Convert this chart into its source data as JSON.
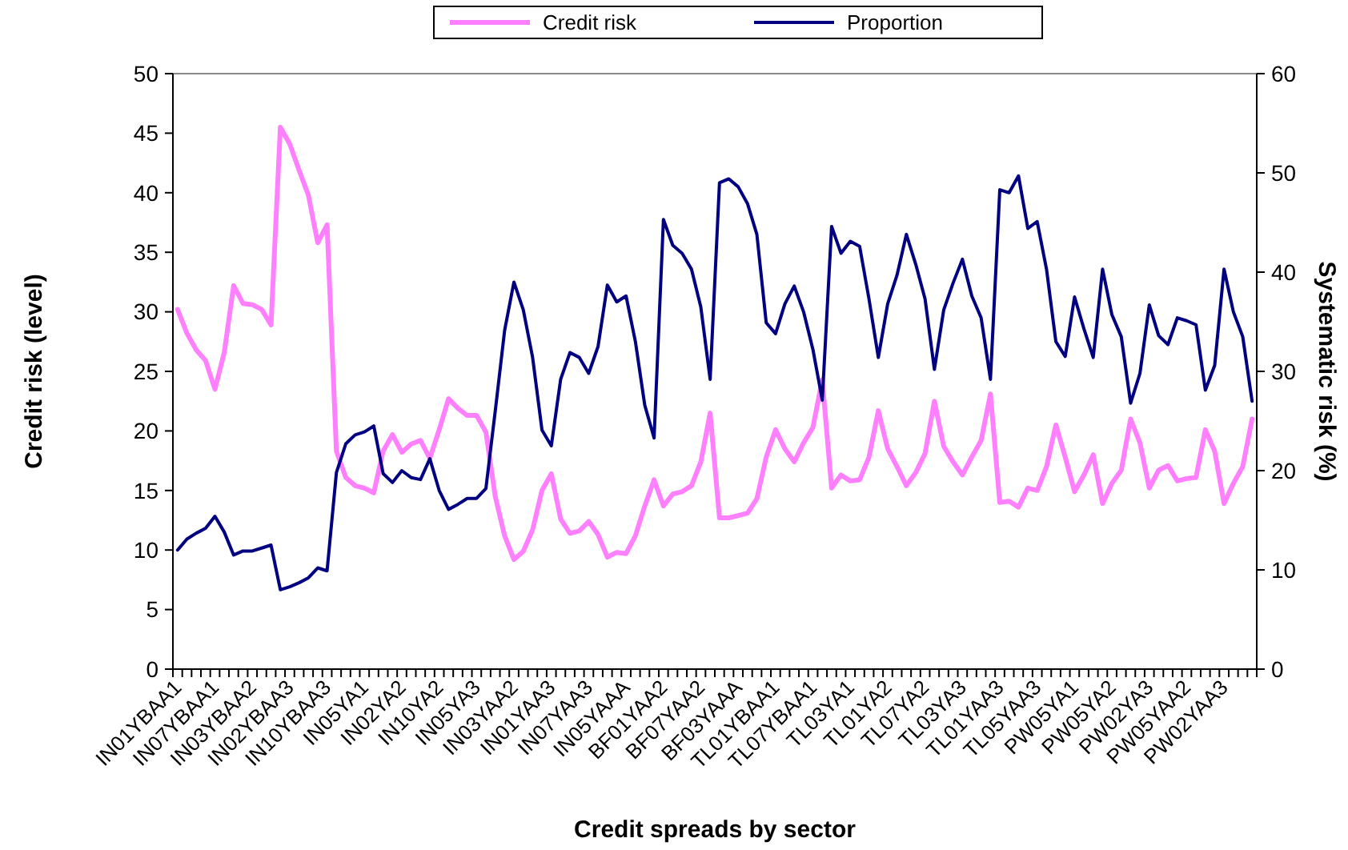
{
  "chart_data": {
    "type": "line",
    "xlabel": "Credit spreads by sector",
    "ylabel": "Credit risk (level)",
    "y2label": "Systematic risk (%)",
    "categories": [
      "IN01YBAA1",
      null,
      null,
      null,
      "IN07YBAA1",
      null,
      null,
      null,
      "IN03YBAA2",
      null,
      null,
      null,
      "IN02YBAA3",
      null,
      null,
      null,
      "IN10YBAA3",
      null,
      null,
      null,
      "IN05YA1",
      null,
      null,
      null,
      "IN02YA2",
      null,
      null,
      null,
      "IN10YA2",
      null,
      null,
      null,
      "IN05YA3",
      null,
      null,
      null,
      "IN03YAA2",
      null,
      null,
      null,
      "IN01YAA3",
      null,
      null,
      null,
      "IN07YAA3",
      null,
      null,
      null,
      "IN05YAAA",
      null,
      null,
      null,
      "BF01YAA2",
      null,
      null,
      null,
      "BF07YAA2",
      null,
      null,
      null,
      "BF03YAAA",
      null,
      null,
      null,
      "TL01YBAA1",
      null,
      null,
      null,
      "TL07YBAA1",
      null,
      null,
      null,
      "TL03YA1",
      null,
      null,
      null,
      "TL01YA2",
      null,
      null,
      null,
      "TL07YA2",
      null,
      null,
      null,
      "TL03YA3",
      null,
      null,
      null,
      "TL01YAA3",
      null,
      null,
      null,
      "TL05YAA3",
      null,
      null,
      null,
      "PW05YA1",
      null,
      null,
      null,
      "PW05YA2",
      null,
      null,
      null,
      "PW02YA3",
      null,
      null,
      null,
      "PW05YAA2",
      null,
      null,
      null,
      "PW02YAA3",
      null,
      null,
      null
    ],
    "series": [
      {
        "name": "Credit risk",
        "color": "#ff80ff",
        "values": [
          30.2,
          28.2,
          26.8,
          25.9,
          23.5,
          26.6,
          32.2,
          30.7,
          30.6,
          30.2,
          28.9,
          45.5,
          44.1,
          41.9,
          39.8,
          35.8,
          37.3,
          18.3,
          16.1,
          15.4,
          15.2,
          14.8,
          18.3,
          19.7,
          18.2,
          18.9,
          19.2,
          17.7,
          20.1,
          22.7,
          21.9,
          21.3,
          21.3,
          19.9,
          14.5,
          11.2,
          9.2,
          9.9,
          11.7,
          15.0,
          16.4,
          12.6,
          11.4,
          11.6,
          12.4,
          11.3,
          9.4,
          9.8,
          9.7,
          11.2,
          13.7,
          15.9,
          13.7,
          14.7,
          14.9,
          15.4,
          17.4,
          21.5,
          12.7,
          12.7,
          12.9,
          13.1,
          14.3,
          17.8,
          20.1,
          18.5,
          17.4,
          19.0,
          20.3,
          24.3,
          15.2,
          16.3,
          15.8,
          15.9,
          17.8,
          21.7,
          18.5,
          17.0,
          15.4,
          16.5,
          18.1,
          22.5,
          18.7,
          17.4,
          16.3,
          17.8,
          19.2,
          23.1,
          14.0,
          14.1,
          13.6,
          15.2,
          15.0,
          17.0,
          20.5,
          17.8,
          14.9,
          16.3,
          18.0,
          13.9,
          15.6,
          16.7,
          21.0,
          19.0,
          15.2,
          16.7,
          17.1,
          15.8,
          16.0,
          16.1,
          20.1,
          18.3,
          13.9,
          15.6,
          17.0,
          21.0
        ]
      },
      {
        "name": "Proportion",
        "color": "#000080",
        "axis": "y2",
        "values": [
          12.0,
          13.1,
          13.7,
          14.2,
          15.4,
          13.8,
          11.5,
          11.9,
          11.9,
          12.2,
          12.5,
          8.0,
          8.3,
          8.7,
          9.2,
          10.2,
          9.9,
          19.8,
          22.7,
          23.6,
          23.9,
          24.5,
          19.7,
          18.8,
          20.0,
          19.3,
          19.1,
          21.2,
          18.0,
          16.1,
          16.6,
          17.2,
          17.2,
          18.2,
          26.0,
          34.1,
          39.0,
          36.2,
          31.4,
          24.1,
          22.5,
          29.2,
          31.9,
          31.4,
          29.8,
          32.5,
          38.7,
          37.0,
          37.6,
          33.0,
          26.6,
          23.3,
          45.3,
          42.7,
          41.9,
          40.3,
          36.5,
          29.2,
          49.0,
          49.4,
          48.6,
          46.9,
          43.8,
          34.9,
          33.8,
          36.8,
          38.6,
          36.0,
          32.2,
          27.1,
          44.6,
          41.9,
          43.1,
          42.6,
          37.3,
          31.4,
          36.8,
          39.7,
          43.8,
          40.8,
          37.3,
          30.2,
          36.2,
          38.9,
          41.3,
          37.6,
          35.4,
          29.2,
          48.3,
          48.0,
          49.7,
          44.4,
          45.1,
          40.3,
          33.0,
          31.5,
          37.5,
          34.3,
          31.4,
          40.3,
          35.7,
          33.5,
          26.8,
          29.8,
          36.7,
          33.6,
          32.7,
          35.4,
          35.1,
          34.7,
          28.1,
          30.6,
          40.3,
          36.0,
          33.5,
          27.0
        ]
      }
    ],
    "ylim": [
      0,
      50
    ],
    "yticks": [
      0,
      5,
      10,
      15,
      20,
      25,
      30,
      35,
      40,
      45,
      50
    ],
    "y2lim": [
      0,
      60
    ],
    "y2ticks": [
      0,
      10,
      20,
      30,
      40,
      50,
      60
    ],
    "legend": "top",
    "grid": false,
    "marker": "none",
    "line_style": "solid"
  }
}
